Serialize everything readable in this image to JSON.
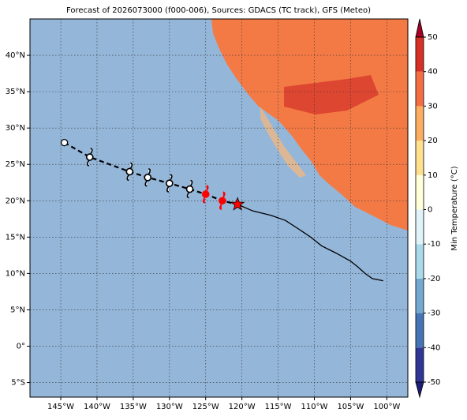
{
  "chart_data": {
    "type": "map",
    "title": "Forecast of 2026073000 (f000-006), Sources: GDACS (TC track), GFS (Meteo)",
    "xlim": [
      -149.25,
      -97.1
    ],
    "ylim": [
      -7,
      45
    ],
    "xticks": [
      {
        "value": -145,
        "label": "145°W"
      },
      {
        "value": -140,
        "label": "140°W"
      },
      {
        "value": -135,
        "label": "135°W"
      },
      {
        "value": -130,
        "label": "130°W"
      },
      {
        "value": -125,
        "label": "125°W"
      },
      {
        "value": -120,
        "label": "120°W"
      },
      {
        "value": -115,
        "label": "115°W"
      },
      {
        "value": -110,
        "label": "110°W"
      },
      {
        "value": -105,
        "label": "105°W"
      },
      {
        "value": -100,
        "label": "100°W"
      }
    ],
    "yticks": [
      {
        "value": -5,
        "label": "5°S"
      },
      {
        "value": 0,
        "label": "0°"
      },
      {
        "value": 5,
        "label": "5°N"
      },
      {
        "value": 10,
        "label": "10°N"
      },
      {
        "value": 15,
        "label": "15°N"
      },
      {
        "value": 20,
        "label": "20°N"
      },
      {
        "value": 25,
        "label": "25°N"
      },
      {
        "value": 30,
        "label": "30°N"
      },
      {
        "value": 35,
        "label": "35°N"
      },
      {
        "value": 40,
        "label": "40°N"
      }
    ],
    "grid": true,
    "ocean_color": "#94b6d9",
    "land_color": "#f47a45",
    "observed_track": {
      "color": "#000000",
      "lon": [
        -120.6,
        -118.5,
        -116,
        -114,
        -112,
        -110.5,
        -109,
        -107,
        -105,
        -104,
        -103,
        -102,
        -100.5
      ],
      "lat": [
        19.5,
        18.6,
        18,
        17.3,
        16,
        15,
        13.8,
        12.8,
        11.7,
        10.9,
        10,
        9.3,
        9
      ]
    },
    "forecast_track": {
      "lon": [
        -144.5,
        -141,
        -135.5,
        -133,
        -130,
        -127.2,
        -125,
        -122.7,
        -120.6
      ],
      "lat": [
        28,
        26,
        24,
        23.2,
        22.4,
        21.6,
        20.9,
        20,
        19.5
      ],
      "markers": [
        "circle",
        "hurricane",
        "hurricane",
        "hurricane",
        "hurricane",
        "hurricane",
        "hurricane",
        "hurricane",
        "star"
      ],
      "colors": [
        "#000000",
        "#000000",
        "#000000",
        "#000000",
        "#000000",
        "#000000",
        "#ff0000",
        "#ff0000",
        "#ff0000"
      ]
    },
    "colorbar": {
      "label": "Min Temperature (°C)",
      "lim": [
        -50,
        50
      ],
      "ticks": [
        -50,
        -40,
        -30,
        -20,
        -10,
        0,
        10,
        20,
        30,
        40,
        50
      ],
      "colors": [
        "#313695",
        "#4575b4",
        "#74a9cf",
        "#abd9e9",
        "#e0f3f8",
        "#ffffd9",
        "#fee090",
        "#fdae61",
        "#f46d43",
        "#d73027"
      ],
      "under": "#1d1d7a",
      "over": "#a50026"
    }
  }
}
